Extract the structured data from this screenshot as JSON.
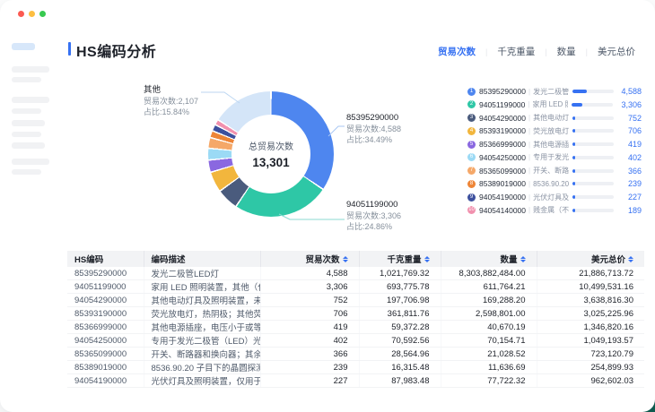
{
  "window": {
    "traffic_lights": [
      "#fb5a52",
      "#fdbe41",
      "#38c950"
    ]
  },
  "header": {
    "title": "HS编码分析"
  },
  "ui": {
    "separator": "|"
  },
  "metric_tabs": {
    "items": [
      {
        "label": "贸易次数",
        "active": true
      },
      {
        "label": "千克重量",
        "active": false
      },
      {
        "label": "数量",
        "active": false
      },
      {
        "label": "美元总价",
        "active": false
      }
    ]
  },
  "chart_data": {
    "type": "donut",
    "title": "HS编码分析 - 贸易次数占比",
    "center": {
      "label": "总贸易次数",
      "value": "13,301"
    },
    "total": 13301,
    "series": [
      {
        "code": "85395290000",
        "value": 4588,
        "share_pct": 34.49,
        "color": "#4e86ef"
      },
      {
        "code": "94051199000",
        "value": 3306,
        "share_pct": 24.86,
        "color": "#2ec7a6"
      },
      {
        "code": "94054290000",
        "value": 752,
        "share_pct": 5.65,
        "color": "#4a5b7d"
      },
      {
        "code": "85393190000",
        "value": 706,
        "share_pct": 5.31,
        "color": "#f2b63d"
      },
      {
        "code": "85366999000",
        "value": 419,
        "share_pct": 3.15,
        "color": "#8a68e0"
      },
      {
        "code": "94054250000",
        "value": 402,
        "share_pct": 3.02,
        "color": "#9bdaf5"
      },
      {
        "code": "85365099000",
        "value": 366,
        "share_pct": 2.75,
        "color": "#f5a869"
      },
      {
        "code": "85389019000",
        "value": 239,
        "share_pct": 1.8,
        "color": "#ee8537"
      },
      {
        "code": "94054190000",
        "value": 227,
        "share_pct": 1.71,
        "color": "#3d509e"
      },
      {
        "code": "94054140000",
        "value": 189,
        "share_pct": 1.42,
        "color": "#f191ae"
      },
      {
        "code": "其他",
        "value": 2107,
        "share_pct": 15.84,
        "color": "#d4e5f8"
      }
    ],
    "annotations": {
      "left": {
        "title": "其他",
        "line1": "贸易次数:2,107",
        "line2": "占比:15.84%"
      },
      "right_top": {
        "title": "85395290000",
        "line1": "贸易次数:4,588",
        "line2": "占比:34.49%"
      },
      "right_bottom": {
        "title": "94051199000",
        "line1": "贸易次数:3,306",
        "line2": "占比:24.86%"
      }
    }
  },
  "legend": {
    "rows": [
      {
        "rank": "1",
        "code": "85395290000",
        "desc": "发光二极管...",
        "value_display": "4,588",
        "share_pct": 34.5,
        "color": "#4e86ef"
      },
      {
        "rank": "2",
        "code": "94051199000",
        "desc": "家用 LED 照...",
        "value_display": "3,306",
        "share_pct": 24.9,
        "color": "#2ec7a6"
      },
      {
        "rank": "3",
        "code": "94054290000",
        "desc": "其他电动灯...",
        "value_display": "752",
        "share_pct": 5.7,
        "color": "#4a5b7d"
      },
      {
        "rank": "4",
        "code": "85393190000",
        "desc": "荧光放电灯...",
        "value_display": "706",
        "share_pct": 5.3,
        "color": "#f2b63d"
      },
      {
        "rank": "5",
        "code": "85366999000",
        "desc": "其他电源插...",
        "value_display": "419",
        "share_pct": 3.2,
        "color": "#8a68e0"
      },
      {
        "rank": "6",
        "code": "94054250000",
        "desc": "专用于发光...",
        "value_display": "402",
        "share_pct": 3.0,
        "color": "#9bdaf5"
      },
      {
        "rank": "7",
        "code": "85365099000",
        "desc": "开关、断路...",
        "value_display": "366",
        "share_pct": 2.8,
        "color": "#f5a869"
      },
      {
        "rank": "8",
        "code": "85389019000",
        "desc": "8536.90.20 ...",
        "value_display": "239",
        "share_pct": 1.8,
        "color": "#ee8537"
      },
      {
        "rank": "9",
        "code": "94054190000",
        "desc": "光伏灯具及...",
        "value_display": "227",
        "share_pct": 1.7,
        "color": "#3d509e"
      },
      {
        "rank": "10",
        "code": "94054140000",
        "desc": "贱金属（不...",
        "value_display": "189",
        "share_pct": 1.4,
        "color": "#f191ae"
      }
    ]
  },
  "table": {
    "headers": {
      "h1": "HS编码",
      "h2": "编码描述",
      "h3": "贸易次数",
      "h4": "千克重量",
      "h5": "数量",
      "h6": "美元总价"
    },
    "rows": [
      {
        "code": "85395290000",
        "desc": "发光二极管LED灯",
        "trade_count": "4,588",
        "kg_weight": "1,021,769.32",
        "quantity": "8,303,882,484.00",
        "usd_total": "21,886,713.72"
      },
      {
        "code": "94051199000",
        "desc": "家用 LED 照明装置，其他（代码：9405.1...",
        "trade_count": "3,306",
        "kg_weight": "693,775.78",
        "quantity": "611,764.21",
        "usd_total": "10,499,531.16"
      },
      {
        "code": "94054290000",
        "desc": "其他电动灯具及照明装置，未列明，设计...",
        "trade_count": "752",
        "kg_weight": "197,706.98",
        "quantity": "169,288.20",
        "usd_total": "3,638,816.30"
      },
      {
        "code": "85393190000",
        "desc": "荧光放电灯，热阴极；其他荧光，热阴极",
        "trade_count": "706",
        "kg_weight": "361,811.76",
        "quantity": "2,598,801.00",
        "usd_total": "3,025,225.96"
      },
      {
        "code": "85366999000",
        "desc": "其他电源插座，电压小于或等于 1000 伏；...",
        "trade_count": "419",
        "kg_weight": "59,372.28",
        "quantity": "40,670.19",
        "usd_total": "1,346,820.16"
      },
      {
        "code": "94054250000",
        "desc": "专用于发光二极管（LED）光源的灯具及...",
        "trade_count": "402",
        "kg_weight": "70,592.56",
        "quantity": "70,154.71",
        "usd_total": "1,049,193.57"
      },
      {
        "code": "85365099000",
        "desc": "开关、断路器和换向器；其余。",
        "trade_count": "366",
        "kg_weight": "28,564.96",
        "quantity": "21,028.52",
        "usd_total": "723,120.79"
      },
      {
        "code": "85389019000",
        "desc": "8536.90.20 子目下的晶圆探测器零件，其...",
        "trade_count": "239",
        "kg_weight": "16,315.48",
        "quantity": "11,636.69",
        "usd_total": "254,899.93"
      },
      {
        "code": "94054190000",
        "desc": "光伏灯具及照明装置，仅用于发光二极管...",
        "trade_count": "227",
        "kg_weight": "87,983.48",
        "quantity": "77,722.32",
        "usd_total": "962,602.03"
      }
    ]
  }
}
